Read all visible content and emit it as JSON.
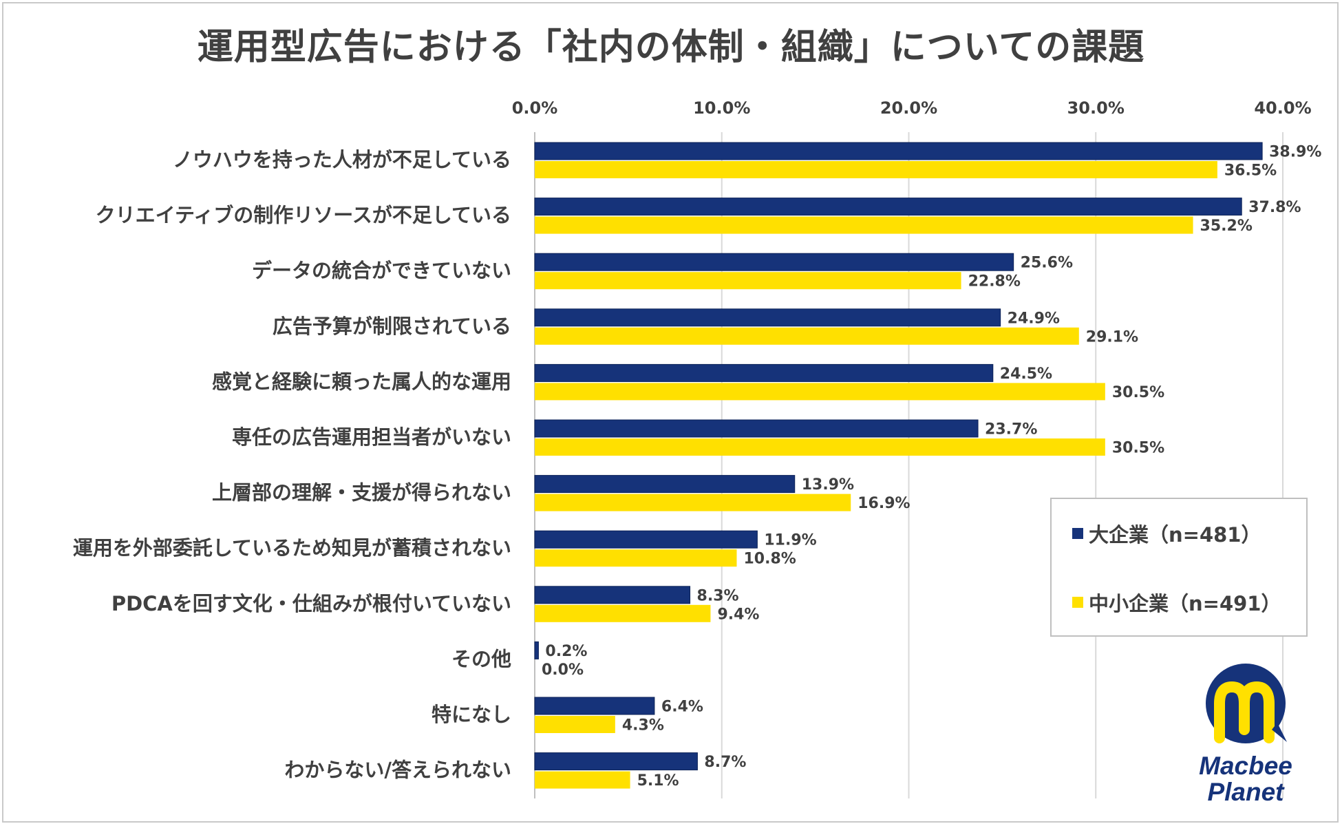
{
  "chart_data": {
    "type": "bar",
    "orientation": "horizontal",
    "title": "運用型広告における「社内の体制・組織」についての課題",
    "x_ticks": [
      "0.0%",
      "10.0%",
      "20.0%",
      "30.0%",
      "40.0%"
    ],
    "xlim": [
      0,
      40
    ],
    "grid": true,
    "legend_position": "bottom-right",
    "categories": [
      "ノウハウを持った人材が不足している",
      "クリエイティブの制作リソースが不足している",
      "データの統合ができていない",
      "広告予算が制限されている",
      "感覚と経験に頼った属人的な運用",
      "専任の広告運用担当者がいない",
      "上層部の理解・支援が得られない",
      "運用を外部委託しているため知見が蓄積されない",
      "PDCAを回す文化・仕組みが根付いていない",
      "その他",
      "特になし",
      "わからない/答えられない"
    ],
    "series": [
      {
        "name": "大企業（n=481）",
        "color": "#16337a",
        "values": [
          38.9,
          37.8,
          25.6,
          24.9,
          24.5,
          23.7,
          13.9,
          11.9,
          8.3,
          0.2,
          6.4,
          8.7
        ],
        "labels": [
          "38.9%",
          "37.8%",
          "25.6%",
          "24.9%",
          "24.5%",
          "23.7%",
          "13.9%",
          "11.9%",
          "8.3%",
          "0.2%",
          "6.4%",
          "8.7%"
        ]
      },
      {
        "name": "中小企業（n=491）",
        "color": "#ffe000",
        "values": [
          36.5,
          35.2,
          22.8,
          29.1,
          30.5,
          30.5,
          16.9,
          10.8,
          9.4,
          0.0,
          4.3,
          5.1
        ],
        "labels": [
          "36.5%",
          "35.2%",
          "22.8%",
          "29.1%",
          "30.5%",
          "30.5%",
          "16.9%",
          "10.8%",
          "9.4%",
          "0.0%",
          "4.3%",
          "5.1%"
        ]
      }
    ]
  },
  "logo": {
    "text_line1": "Macbee",
    "text_line2": "Planet",
    "color_primary": "#16337a",
    "color_accent": "#ffe000"
  }
}
